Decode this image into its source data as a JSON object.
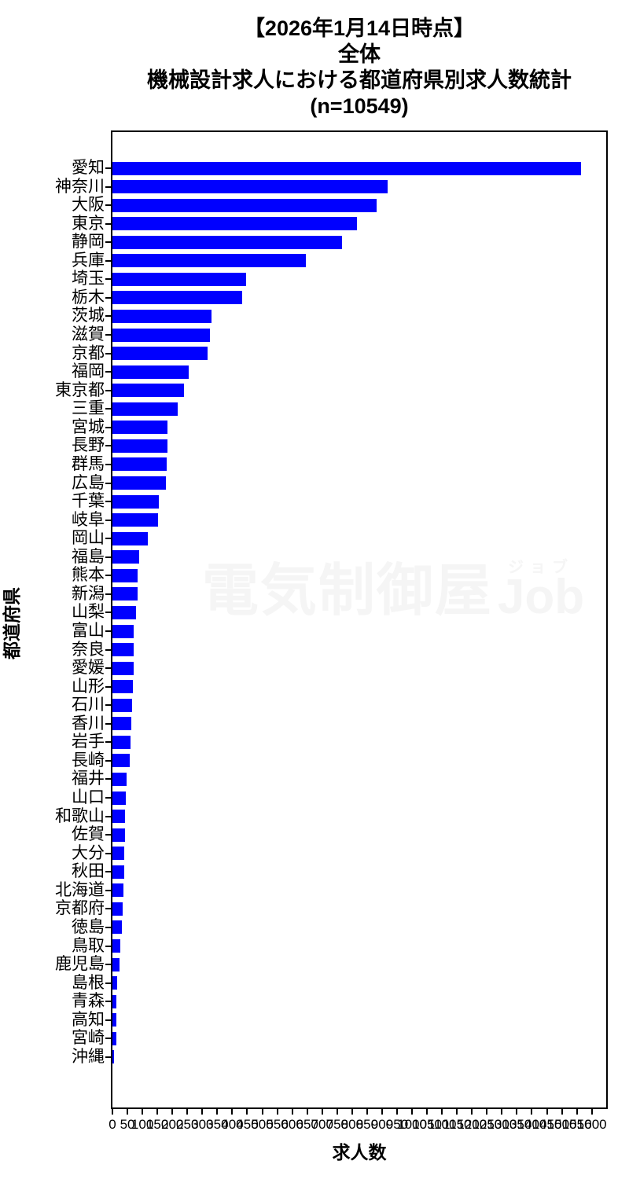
{
  "title": {
    "line1": "【2026年1月14日時点】",
    "line2": "全体",
    "line3": "機械設計求人における都道府県別求人数統計",
    "line4": "(n=10549)"
  },
  "watermark": {
    "main": "電気制御屋",
    "ruby": "ジョブ",
    "latin": "Job"
  },
  "chart_data": {
    "type": "bar",
    "orientation": "horizontal",
    "title": "【2026年1月14日時点】 全体 機械設計求人における都道府県別求人数統計 (n=10549)",
    "sample_n": 10549,
    "xlabel": "求人数",
    "ylabel": "都道府県",
    "xlim": [
      0,
      1648
    ],
    "bar_color": "#0000ff",
    "grid": false,
    "legend": "none",
    "xticks": [
      0,
      50,
      100,
      150,
      200,
      250,
      300,
      350,
      400,
      450,
      500,
      550,
      600,
      650,
      700,
      750,
      800,
      850,
      900,
      950,
      1000,
      1050,
      1100,
      1150,
      1200,
      1250,
      1300,
      1350,
      1400,
      1450,
      1500,
      1550,
      1600
    ],
    "categories": [
      "愛知",
      "神奈川",
      "大阪",
      "東京",
      "静岡",
      "兵庫",
      "埼玉",
      "栃木",
      "茨城",
      "滋賀",
      "京都",
      "福岡",
      "東京都",
      "三重",
      "宮城",
      "長野",
      "群馬",
      "広島",
      "千葉",
      "岐阜",
      "岡山",
      "福島",
      "熊本",
      "新潟",
      "山梨",
      "富山",
      "奈良",
      "愛媛",
      "山形",
      "石川",
      "香川",
      "岩手",
      "長崎",
      "福井",
      "山口",
      "和歌山",
      "佐賀",
      "大分",
      "秋田",
      "北海道",
      "京都府",
      "徳島",
      "鳥取",
      "鹿児島",
      "島根",
      "青森",
      "高知",
      "宮崎",
      "沖縄"
    ],
    "values": [
      1565,
      918,
      882,
      816,
      767,
      646,
      445,
      433,
      331,
      326,
      318,
      255,
      240,
      219,
      185,
      185,
      182,
      179,
      154,
      152,
      117,
      89,
      83,
      83,
      78,
      71,
      71,
      71,
      68,
      66,
      64,
      61,
      59,
      46,
      44,
      42,
      41,
      39,
      39,
      36,
      34,
      31,
      25,
      23,
      16,
      14,
      14,
      12,
      5
    ]
  }
}
